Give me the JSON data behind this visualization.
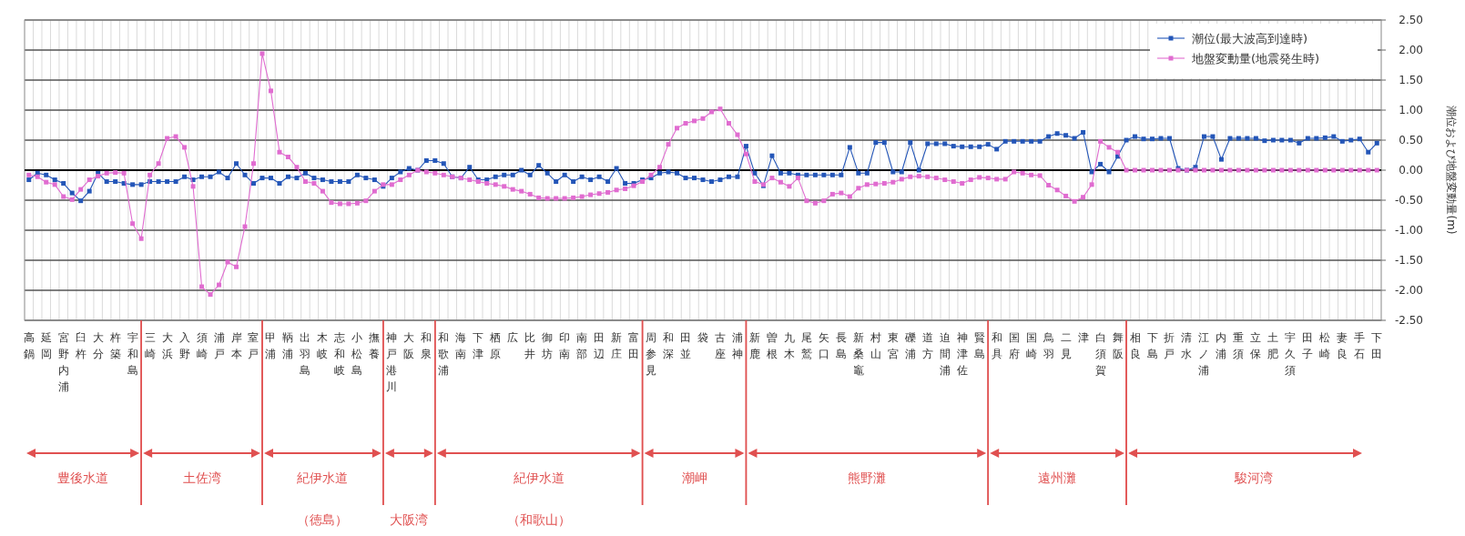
{
  "chart_data": {
    "type": "line",
    "ylabel": "潮位および地盤変動量(m)",
    "categories": [
      "高鍋",
      null,
      "延岡",
      null,
      "宮野内浦",
      null,
      "臼杵",
      null,
      "大分",
      null,
      "杵築",
      null,
      "宇和島",
      null,
      "三崎",
      null,
      "大浜",
      null,
      "入野",
      null,
      "須崎",
      null,
      "浦戸",
      null,
      "岸本",
      null,
      "室戸",
      null,
      "甲浦",
      null,
      "鞆浦",
      null,
      "出羽島",
      null,
      "木岐",
      null,
      "志和岐",
      null,
      "小松島",
      null,
      "撫養",
      null,
      "神戸港川",
      null,
      "大阪",
      null,
      "和泉",
      null,
      "和歌浦",
      null,
      "海南",
      null,
      "下津",
      null,
      "栖原",
      null,
      "広",
      null,
      "比井",
      null,
      "御坊",
      null,
      "印南",
      null,
      "南部",
      null,
      "田辺",
      null,
      "新庄",
      null,
      "富田",
      null,
      "周参見",
      null,
      "和深",
      null,
      "田並",
      null,
      "袋",
      null,
      "古座",
      null,
      "浦神",
      null,
      "新鹿",
      null,
      "曽根",
      null,
      "九木",
      null,
      "尾鷲",
      null,
      "矢口",
      null,
      "長島",
      null,
      "新桑竈",
      null,
      "村山",
      null,
      "東宮",
      null,
      "礫浦",
      null,
      "道方",
      null,
      "迫間浦",
      null,
      "神津佐",
      null,
      "賢島",
      null,
      "和具",
      null,
      "国府",
      null,
      "国崎",
      null,
      "鳥羽",
      null,
      "二見",
      null,
      "津",
      null,
      "白須賀",
      null,
      "舞阪",
      null,
      "相良",
      null,
      "下島",
      null,
      "折戸",
      null,
      "清水",
      null,
      "江ノ浦",
      null,
      "内浦",
      null,
      "重須",
      null,
      "立保",
      null,
      "土肥",
      null,
      "宇久須",
      null,
      "田子",
      null,
      "松崎",
      null,
      "妻良",
      null,
      "手石",
      null,
      "下田"
    ],
    "series": [
      {
        "name": "潮位(最大波高到達時)",
        "color": "#2456b8",
        "values": [
          -0.16,
          -0.05,
          -0.08,
          -0.16,
          -0.22,
          -0.38,
          -0.51,
          -0.35,
          -0.05,
          -0.19,
          -0.19,
          -0.22,
          -0.24,
          -0.24,
          -0.19,
          -0.19,
          -0.19,
          -0.19,
          -0.11,
          -0.16,
          -0.11,
          -0.11,
          -0.03,
          -0.13,
          0.11,
          -0.08,
          -0.22,
          -0.13,
          -0.13,
          -0.22,
          -0.11,
          -0.13,
          -0.05,
          -0.13,
          -0.16,
          -0.19,
          -0.19,
          -0.19,
          -0.08,
          -0.13,
          -0.16,
          -0.27,
          -0.13,
          -0.03,
          0.03,
          0,
          0.16,
          0.16,
          0.11,
          -0.11,
          -0.13,
          0.05,
          -0.16,
          -0.16,
          -0.11,
          -0.08,
          -0.08,
          0,
          -0.08,
          0.08,
          -0.05,
          -0.19,
          -0.08,
          -0.19,
          -0.11,
          -0.16,
          -0.11,
          -0.19,
          0.03,
          -0.22,
          -0.22,
          -0.16,
          -0.13,
          -0.05,
          -0.03,
          -0.05,
          -0.13,
          -0.13,
          -0.16,
          -0.19,
          -0.16,
          -0.11,
          -0.11,
          0.4,
          -0.05,
          -0.26,
          0.24,
          -0.05,
          -0.05,
          -0.08,
          -0.08,
          -0.08,
          -0.08,
          -0.08,
          -0.08,
          0.38,
          -0.05,
          -0.05,
          0.46,
          0.46,
          -0.03,
          -0.03,
          0.46,
          0,
          0.44,
          0.44,
          0.44,
          0.4,
          0.39,
          0.39,
          0.39,
          0.43,
          0.35,
          0.48,
          0.48,
          0.48,
          0.48,
          0.48,
          0.56,
          0.61,
          0.58,
          0.53,
          0.63,
          -0.03,
          0.1,
          -0.03,
          0.23,
          0.5,
          0.56,
          0.52,
          0.52,
          0.53,
          0.53,
          0.03,
          0,
          0.05,
          0.56,
          0.56,
          0.18,
          0.53,
          0.53,
          0.53,
          0.53,
          0.49,
          0.5,
          0.5,
          0.5,
          0.45,
          0.53,
          0.53,
          0.54,
          0.56,
          0.48,
          0.5,
          0.52,
          0.3,
          0.45
        ]
      },
      {
        "name": "地盤変動量(地震発生時)",
        "color": "#e06cd0",
        "values": [
          -0.08,
          -0.11,
          -0.2,
          -0.24,
          -0.44,
          -0.49,
          -0.32,
          -0.16,
          -0.1,
          -0.05,
          -0.04,
          -0.05,
          -0.89,
          -1.14,
          -0.08,
          0.11,
          0.53,
          0.56,
          0.38,
          -0.27,
          -1.94,
          -2.07,
          -1.91,
          -1.53,
          -1.61,
          -0.94,
          0.11,
          1.94,
          1.32,
          0.3,
          0.22,
          0.05,
          -0.19,
          -0.22,
          -0.35,
          -0.54,
          -0.56,
          -0.56,
          -0.55,
          -0.51,
          -0.35,
          -0.24,
          -0.24,
          -0.16,
          -0.08,
          0,
          -0.03,
          -0.05,
          -0.08,
          -0.11,
          -0.13,
          -0.16,
          -0.19,
          -0.22,
          -0.24,
          -0.27,
          -0.32,
          -0.35,
          -0.4,
          -0.46,
          -0.47,
          -0.47,
          -0.47,
          -0.46,
          -0.44,
          -0.41,
          -0.39,
          -0.37,
          -0.33,
          -0.31,
          -0.26,
          -0.19,
          -0.08,
          0.05,
          0.43,
          0.7,
          0.78,
          0.82,
          0.86,
          0.97,
          1.02,
          0.78,
          0.59,
          0.27,
          -0.19,
          -0.24,
          -0.13,
          -0.2,
          -0.27,
          -0.13,
          -0.51,
          -0.55,
          -0.51,
          -0.4,
          -0.38,
          -0.44,
          -0.3,
          -0.24,
          -0.23,
          -0.22,
          -0.2,
          -0.15,
          -0.11,
          -0.1,
          -0.11,
          -0.13,
          -0.16,
          -0.19,
          -0.22,
          -0.16,
          -0.12,
          -0.13,
          -0.15,
          -0.15,
          -0.03,
          -0.05,
          -0.08,
          -0.09,
          -0.25,
          -0.33,
          -0.43,
          -0.52,
          -0.45,
          -0.24,
          0.48,
          0.38,
          0.3,
          0,
          0,
          0,
          0,
          0,
          0,
          0,
          0,
          0,
          0,
          0,
          0,
          0,
          0,
          0,
          0,
          0,
          0,
          0,
          0,
          0,
          0,
          0,
          0,
          0,
          0,
          0,
          0,
          0,
          0
        ]
      }
    ],
    "ylim": [
      -2.5,
      2.5
    ],
    "yticks": [
      {
        "value": 2.5,
        "label": "2.50"
      },
      {
        "value": 2.0,
        "label": "2.00"
      },
      {
        "value": 1.5,
        "label": "1.50"
      },
      {
        "value": 1.0,
        "label": "1.00"
      },
      {
        "value": 0.5,
        "label": "0.50"
      },
      {
        "value": 0,
        "label": "0.00"
      },
      {
        "value": -0.5,
        "label": "-0.50"
      },
      {
        "value": -1.0,
        "label": "-1.00"
      },
      {
        "value": -1.5,
        "label": "-1.50"
      },
      {
        "value": -2.0,
        "label": "-2.00"
      },
      {
        "value": -2.5,
        "label": "-2.50"
      }
    ],
    "ref_lines": [
      {
        "axis": "y",
        "value": 0,
        "color": "#000000"
      }
    ],
    "annotations": [
      "豊後水道",
      "土佐湾",
      "紀伊水道（徳島）",
      "大阪湾",
      "紀伊水道（和歌山）",
      "潮岬",
      "熊野灘",
      "遠州灘",
      "駿河湾"
    ],
    "grid": true,
    "legend": "top right",
    "marker": "square",
    "line_style": "solid"
  }
}
